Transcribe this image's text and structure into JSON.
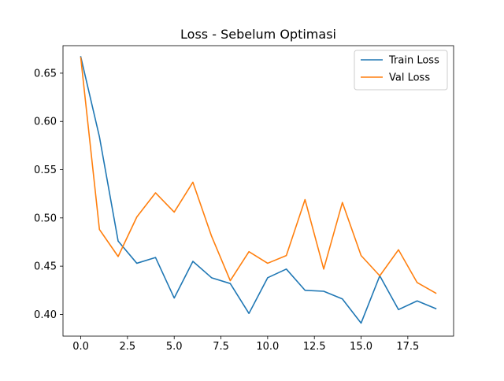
{
  "chart_data": {
    "type": "line",
    "title": "Loss - Sebelum Optimasi",
    "xlabel": "",
    "ylabel": "",
    "xlim": [
      -0.95,
      19.95
    ],
    "ylim": [
      0.3775,
      0.6785
    ],
    "grid": false,
    "legend_position": "top-right",
    "x": [
      0,
      1,
      2,
      3,
      4,
      5,
      6,
      7,
      8,
      9,
      10,
      11,
      12,
      13,
      14,
      15,
      16,
      17,
      18,
      19
    ],
    "x_ticks": [
      {
        "value": 0,
        "label": "0.0"
      },
      {
        "value": 2.5,
        "label": "2.5"
      },
      {
        "value": 5,
        "label": "5.0"
      },
      {
        "value": 7.5,
        "label": "7.5"
      },
      {
        "value": 10,
        "label": "10.0"
      },
      {
        "value": 12.5,
        "label": "12.5"
      },
      {
        "value": 15,
        "label": "15.0"
      },
      {
        "value": 17.5,
        "label": "17.5"
      }
    ],
    "y_ticks": [
      {
        "value": 0.4,
        "label": "0.40"
      },
      {
        "value": 0.45,
        "label": "0.45"
      },
      {
        "value": 0.5,
        "label": "0.50"
      },
      {
        "value": 0.55,
        "label": "0.55"
      },
      {
        "value": 0.6,
        "label": "0.60"
      },
      {
        "value": 0.65,
        "label": "0.65"
      }
    ],
    "series": [
      {
        "name": "Train Loss",
        "color": "#1f77b4",
        "values": [
          0.667,
          0.584,
          0.476,
          0.453,
          0.459,
          0.417,
          0.455,
          0.438,
          0.432,
          0.401,
          0.438,
          0.447,
          0.425,
          0.424,
          0.416,
          0.391,
          0.44,
          0.405,
          0.414,
          0.406
        ]
      },
      {
        "name": "Val Loss",
        "color": "#ff7f0e",
        "values": [
          0.666,
          0.488,
          0.46,
          0.501,
          0.526,
          0.506,
          0.537,
          0.481,
          0.435,
          0.465,
          0.453,
          0.461,
          0.519,
          0.447,
          0.516,
          0.461,
          0.44,
          0.467,
          0.433,
          0.422
        ]
      }
    ]
  }
}
